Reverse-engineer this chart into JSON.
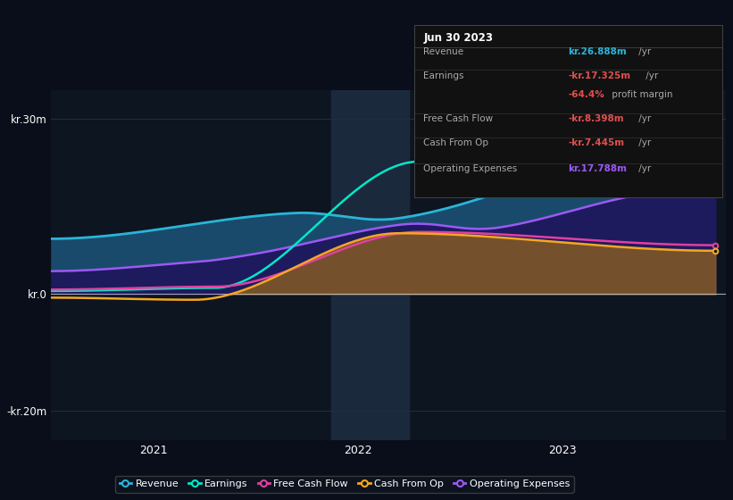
{
  "background_color": "#0a0e1a",
  "plot_bg_color": "#0d1520",
  "ylabel_30": "kr.30m",
  "ylabel_0": "kr.0",
  "ylabel_neg20": "-kr.20m",
  "ylim": [
    -25000000,
    35000000
  ],
  "series": {
    "revenue": {
      "color": "#2ab5d8",
      "label": "Revenue"
    },
    "operating_expenses": {
      "color": "#9b59f5",
      "label": "Operating Expenses"
    },
    "earnings": {
      "color": "#00e8c8",
      "label": "Earnings"
    },
    "free_cash_flow": {
      "color": "#e040a0",
      "label": "Free Cash Flow"
    },
    "cash_from_op": {
      "color": "#f5a623",
      "label": "Cash From Op"
    }
  },
  "legend_entries": [
    {
      "label": "Revenue",
      "color": "#2ab5d8"
    },
    {
      "label": "Earnings",
      "color": "#00e8c8"
    },
    {
      "label": "Free Cash Flow",
      "color": "#e040a0"
    },
    {
      "label": "Cash From Op",
      "color": "#f5a623"
    },
    {
      "label": "Operating Expenses",
      "color": "#9b59f5"
    }
  ],
  "tooltip": {
    "title": "Jun 30 2023",
    "rows": [
      {
        "label": "Revenue",
        "value": "kr.26.888m",
        "suffix": " /yr",
        "vcolor": "#2ab5d8"
      },
      {
        "label": "Earnings",
        "value": "-kr.17.325m",
        "suffix": " /yr",
        "vcolor": "#e05050"
      },
      {
        "label": "",
        "value": "-64.4%",
        "suffix": " profit margin",
        "vcolor": "#e05050"
      },
      {
        "label": "Free Cash Flow",
        "value": "-kr.8.398m",
        "suffix": " /yr",
        "vcolor": "#e05050"
      },
      {
        "label": "Cash From Op",
        "value": "-kr.7.445m",
        "suffix": " /yr",
        "vcolor": "#e05050"
      },
      {
        "label": "Operating Expenses",
        "value": "kr.17.788m",
        "suffix": " /yr",
        "vcolor": "#9b59f5"
      }
    ]
  }
}
